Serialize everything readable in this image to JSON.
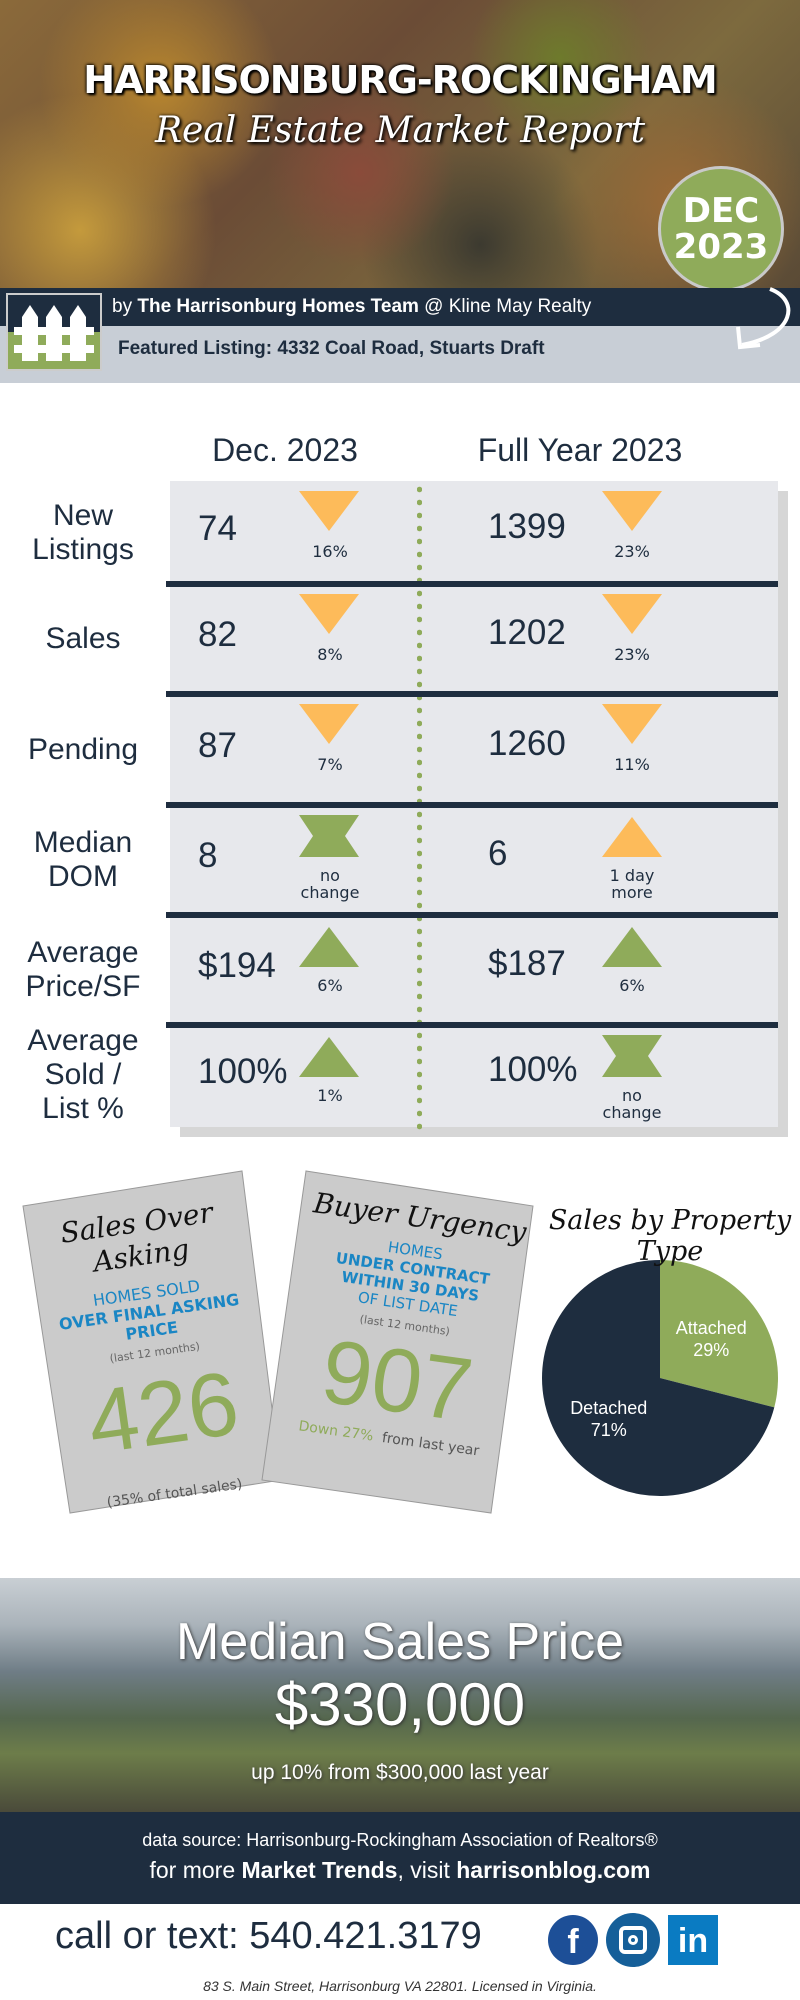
{
  "header": {
    "title": "HARRISONBURG-ROCKINGHAM",
    "subtitle": "Real Estate Market Report",
    "badge_month": "DEC",
    "badge_year": "2023",
    "byline_prefix": "by ",
    "byline_team": "The Harrisonburg Homes Team",
    "byline_suffix": " @ Kline May Realty",
    "featured": "Featured Listing:  4332 Coal Road, Stuarts Draft"
  },
  "colors": {
    "navy": "#1e2d3f",
    "green": "#8fab5a",
    "orange": "#fdbb5a",
    "blue": "#1a86c4"
  },
  "table": {
    "col1": "Dec. 2023",
    "col2": "Full Year 2023",
    "rows": [
      {
        "label": "New Listings",
        "dec": "74",
        "dec_change": "16%",
        "dec_icon": "down",
        "year": "1399",
        "year_change": "23%",
        "year_icon": "down"
      },
      {
        "label": "Sales",
        "dec": "82",
        "dec_change": "8%",
        "dec_icon": "down",
        "year": "1202",
        "year_change": "23%",
        "year_icon": "down"
      },
      {
        "label": "Pending",
        "dec": "87",
        "dec_change": "7%",
        "dec_icon": "down",
        "year": "1260",
        "year_change": "11%",
        "year_icon": "down"
      },
      {
        "label": "Median DOM",
        "dec": "8",
        "dec_change": "no change",
        "dec_icon": "same",
        "year": "6",
        "year_change": "1 day more",
        "year_icon": "up-orange"
      },
      {
        "label": "Average Price/SF",
        "dec": "$194",
        "dec_change": "6%",
        "dec_icon": "up",
        "year": "$187",
        "year_change": "6%",
        "year_icon": "up"
      },
      {
        "label": "Average Sold / List %",
        "dec": "100%",
        "dec_change": "1%",
        "dec_icon": "up",
        "year": "100%",
        "year_change": "no change",
        "year_icon": "same"
      }
    ]
  },
  "card1": {
    "title": "Sales Over Asking",
    "line1": "HOMES SOLD",
    "line2": "OVER FINAL ASKING PRICE",
    "period": "(last 12 months)",
    "value": "426",
    "note": "(35% of total sales)"
  },
  "card2": {
    "title": "Buyer Urgency",
    "line1": "HOMES",
    "line2": "UNDER CONTRACT",
    "line3": "WITHIN 30 DAYS",
    "line4": "OF LIST DATE",
    "period": "(last 12 months)",
    "value": "907",
    "down": "Down 27%",
    "note": "from last year"
  },
  "chart_data": {
    "type": "pie",
    "title": "Sales by Property Type",
    "slices": [
      {
        "label": "Attached",
        "value": 29,
        "color": "#8fab5a"
      },
      {
        "label": "Detached",
        "value": 71,
        "color": "#1e2d3f"
      }
    ]
  },
  "median": {
    "title": "Median Sales Price",
    "value": "$330,000",
    "note": "up 10% from $300,000 last year"
  },
  "footer": {
    "source": "data source: Harrisonburg-Rockingham Association of Realtors®",
    "more_prefix": "for more ",
    "more_bold": "Market Trends",
    "more_mid": ", visit ",
    "site": "harrisonblog.com",
    "phone": "call or text: 540.421.3179",
    "address": "83 S. Main Street, Harrisonburg VA 22801. Licensed in Virginia.",
    "social": [
      "facebook",
      "instagram",
      "linkedin"
    ]
  }
}
